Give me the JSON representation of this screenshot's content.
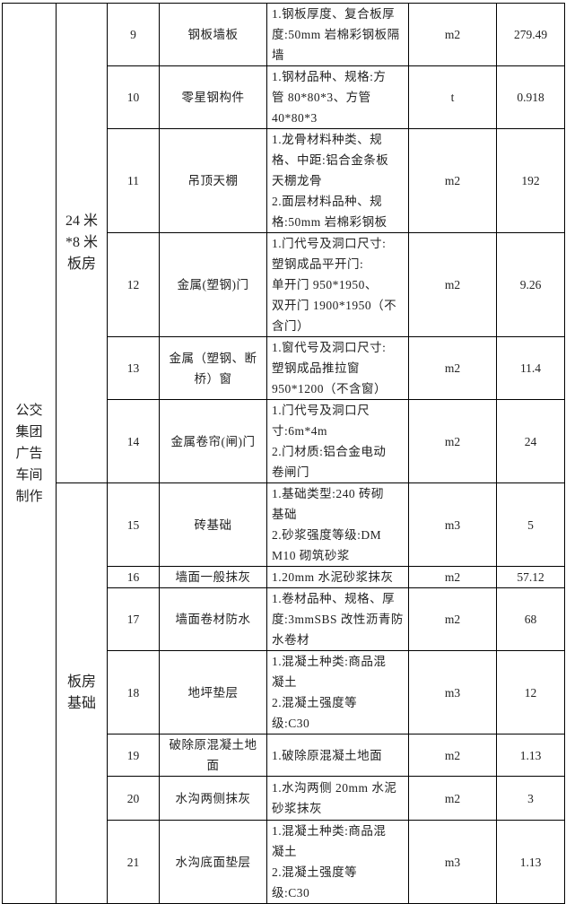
{
  "category": "公交\n集团\n广告\n车间\n制作",
  "groups": [
    {
      "label": "24 米\n*8 米\n板房"
    },
    {
      "label": "板房\n基础"
    }
  ],
  "rows": [
    {
      "no": "9",
      "name": "钢板墙板",
      "desc": "1.钢板厚度、复合板厚\n度:50mm 岩棉彩钢板隔\n墙",
      "unit": "m2",
      "qty": "279.49"
    },
    {
      "no": "10",
      "name": "零星钢构件",
      "desc": "1.钢材品种、规格:方\n管 80*80*3、方管\n40*80*3",
      "unit": "t",
      "qty": "0.918"
    },
    {
      "no": "11",
      "name": "吊顶天棚",
      "desc": "1.龙骨材料种类、规\n格、中距:铝合金条板\n天棚龙骨\n2.面层材料品种、规\n格:50mm 岩棉彩钢板",
      "unit": "m2",
      "qty": "192"
    },
    {
      "no": "12",
      "name": "金属(塑钢)门",
      "desc": "1.门代号及洞口尺寸:\n塑钢成品平开门:\n单开门 950*1950、\n双开门 1900*1950（不\n含门）",
      "unit": "m2",
      "qty": "9.26"
    },
    {
      "no": "13",
      "name": "金属（塑钢、断\n桥）窗",
      "desc": "1.窗代号及洞口尺寸:\n塑钢成品推拉窗\n950*1200（不含窗）",
      "unit": "m2",
      "qty": "11.4"
    },
    {
      "no": "14",
      "name": "金属卷帘(闸)门",
      "desc": "1.门代号及洞口尺\n寸:6m*4m\n2.门材质:铝合金电动\n卷闸门",
      "unit": "m2",
      "qty": "24"
    },
    {
      "no": "15",
      "name": "砖基础",
      "desc": "1.基础类型:240 砖砌\n基础\n2.砂浆强度等级:DM\nM10 砌筑砂浆",
      "unit": "m3",
      "qty": "5"
    },
    {
      "no": "16",
      "name": "墙面一般抹灰",
      "desc": "1.20mm 水泥砂浆抹灰",
      "unit": "m2",
      "qty": "57.12"
    },
    {
      "no": "17",
      "name": "墙面卷材防水",
      "desc": "1.卷材品种、规格、厚\n度:3mmSBS 改性沥青防\n水卷材",
      "unit": "m2",
      "qty": "68"
    },
    {
      "no": "18",
      "name": "地坪垫层",
      "desc": "1.混凝土种类:商品混\n凝土\n2.混凝土强度等\n级:C30",
      "unit": "m3",
      "qty": "12"
    },
    {
      "no": "19",
      "name": "破除原混凝土地\n面",
      "desc": "1.破除原混凝土地面",
      "unit": "m2",
      "qty": "1.13"
    },
    {
      "no": "20",
      "name": "水沟两侧抹灰",
      "desc": "1.水沟两侧 20mm 水泥\n砂浆抹灰",
      "unit": "m2",
      "qty": "3"
    },
    {
      "no": "21",
      "name": "水沟底面垫层",
      "desc": "1.混凝土种类:商品混\n凝土\n2.混凝土强度等\n级:C30",
      "unit": "m3",
      "qty": "1.13"
    }
  ]
}
